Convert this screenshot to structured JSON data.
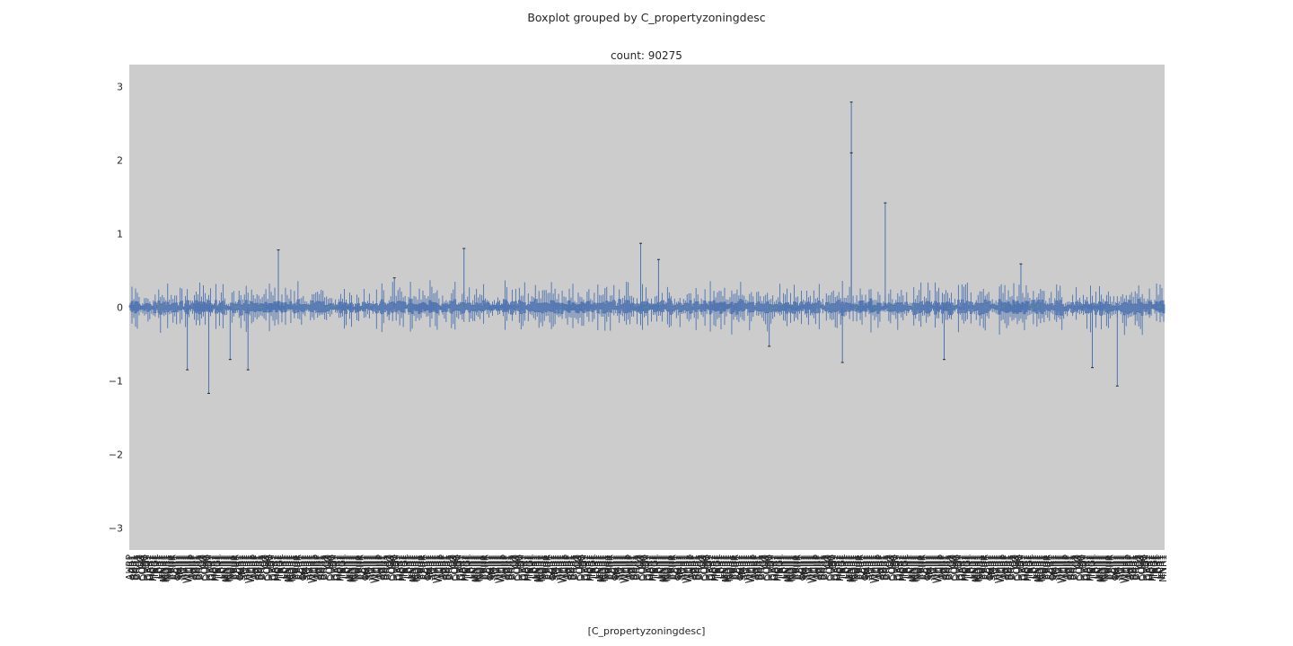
{
  "chart_data": {
    "type": "box",
    "suptitle": "Boxplot grouped by C_propertyzoningdesc",
    "title": "count: 90275",
    "xlabel": "[C_propertyzoningdesc]",
    "ylabel": "",
    "ylim": [
      -3.3,
      3.3
    ],
    "yticks": [
      {
        "value": 3,
        "label": "3"
      },
      {
        "value": 2,
        "label": "2"
      },
      {
        "value": 1,
        "label": "1"
      },
      {
        "value": 0,
        "label": "0"
      },
      {
        "value": -1,
        "label": "−1"
      },
      {
        "value": -2,
        "label": "−2"
      },
      {
        "value": -3,
        "label": "−3"
      }
    ],
    "n_categories": 580,
    "grid": false,
    "background_color": "#cccccc",
    "box_color": "#4c72b0",
    "median_color": "#55a868",
    "text_color": "#262626",
    "visible_category_labels": [
      "AHRP",
      "AR1",
      "AZR1",
      "BHR1",
      "BRR1",
      "C2",
      "CO",
      "CORA",
      "DUR1",
      "EM",
      "GRR1",
      "GAR1",
      "HBR1",
      "HGR1",
      "INGL",
      "LAR1",
      "LBR1",
      "LCR1",
      "LNR1",
      "MNR1",
      "MOR1",
      "NOR1",
      "PDR1",
      "PRR1",
      "PRR",
      "RBR1",
      "SCR1",
      "SGR1",
      "SMR1",
      "SOR1",
      "TCR1",
      "TR1",
      "WHR1",
      "WCR1",
      "WR1"
    ],
    "notable_outliers": [
      {
        "x_index": 83,
        "y": 0.78
      },
      {
        "x_index": 44,
        "y": -1.17
      },
      {
        "x_index": 32,
        "y": -0.85
      },
      {
        "x_index": 56,
        "y": -0.71
      },
      {
        "x_index": 66,
        "y": -0.85
      },
      {
        "x_index": 456,
        "y": -0.71
      },
      {
        "x_index": 404,
        "y": 2.79
      },
      {
        "x_index": 404,
        "y": 2.1
      },
      {
        "x_index": 423,
        "y": 1.42
      },
      {
        "x_index": 286,
        "y": 0.87
      },
      {
        "x_index": 296,
        "y": 0.65
      },
      {
        "x_index": 187,
        "y": 0.8
      },
      {
        "x_index": 148,
        "y": 0.4
      },
      {
        "x_index": 358,
        "y": -0.53
      },
      {
        "x_index": 399,
        "y": -0.75
      },
      {
        "x_index": 499,
        "y": 0.59
      },
      {
        "x_index": 553,
        "y": -1.07
      },
      {
        "x_index": 539,
        "y": -0.82
      }
    ]
  }
}
